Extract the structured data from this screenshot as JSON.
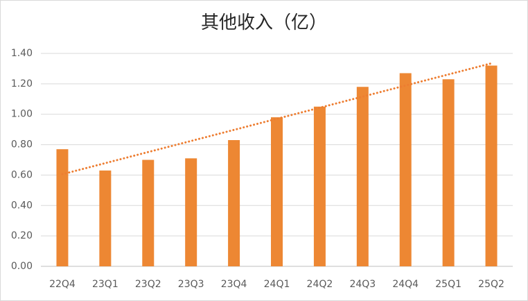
{
  "chart_data": {
    "type": "bar",
    "title": "其他收入（亿）",
    "categories": [
      "22Q4",
      "23Q1",
      "23Q2",
      "23Q3",
      "23Q4",
      "24Q1",
      "24Q2",
      "24Q3",
      "24Q4",
      "25Q1",
      "25Q2"
    ],
    "values": [
      0.77,
      0.63,
      0.7,
      0.71,
      0.83,
      0.98,
      1.05,
      1.18,
      1.27,
      1.23,
      1.32
    ],
    "color": "#ed8733",
    "trendline": true,
    "trendline_color": "#ed7d31",
    "ylim": [
      0,
      1.4
    ],
    "yticks": [
      {
        "value": 0,
        "label": "0.00"
      },
      {
        "value": 0.2,
        "label": "0.20"
      },
      {
        "value": 0.4,
        "label": "0.40"
      },
      {
        "value": 0.6,
        "label": "0.60"
      },
      {
        "value": 0.8,
        "label": "0.80"
      },
      {
        "value": 1.0,
        "label": "1.00"
      },
      {
        "value": 1.2,
        "label": "1.20"
      },
      {
        "value": 1.4,
        "label": "1.40"
      }
    ],
    "grid": true
  }
}
